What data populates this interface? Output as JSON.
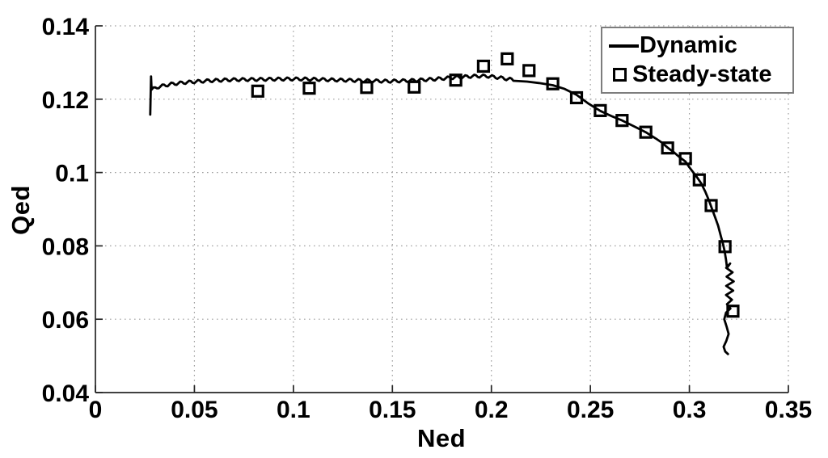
{
  "chart_data": {
    "type": "line",
    "title": "",
    "xlabel": "Ned",
    "ylabel": "Qed",
    "xlim": [
      0,
      0.35
    ],
    "ylim": [
      0.04,
      0.14
    ],
    "grid": "dotted",
    "legend_position": "top-right",
    "x_ticks": {
      "values": [
        0,
        0.05,
        0.1,
        0.15,
        0.2,
        0.25,
        0.3,
        0.35
      ],
      "labels": [
        "0",
        "0.05",
        "0.1",
        "0.15",
        "0.2",
        "0.25",
        "0.3",
        "0.35"
      ]
    },
    "y_ticks": {
      "values": [
        0.04,
        0.06,
        0.08,
        0.1,
        0.12,
        0.14
      ],
      "labels": [
        "0.04",
        "0.06",
        "0.08",
        "0.1",
        "0.12",
        "0.14"
      ]
    },
    "colors": {
      "line": "#000000",
      "marker": "#000000",
      "axis": "#262626",
      "grid": "#a0a0a0",
      "text": "#000000"
    },
    "series": [
      {
        "name": "Dynamic",
        "type": "line",
        "line_width": 2.8,
        "transient": [
          [
            0.0277,
            0.1158
          ],
          [
            0.0281,
            0.1262
          ],
          [
            0.0284,
            0.1226
          ]
        ],
        "ripple": {
          "amplitude": 0.00042,
          "wavelength": 0.0045,
          "step": 0.0009
        },
        "base": [
          [
            0.0284,
            0.1226
          ],
          [
            0.032,
            0.1234
          ],
          [
            0.038,
            0.1241
          ],
          [
            0.046,
            0.1246
          ],
          [
            0.056,
            0.125
          ],
          [
            0.068,
            0.1253
          ],
          [
            0.082,
            0.1254
          ],
          [
            0.096,
            0.1255
          ],
          [
            0.106,
            0.1255
          ],
          [
            0.118,
            0.1253
          ],
          [
            0.132,
            0.1251
          ],
          [
            0.148,
            0.1249
          ],
          [
            0.16,
            0.1251
          ],
          [
            0.172,
            0.1255
          ],
          [
            0.183,
            0.126
          ],
          [
            0.192,
            0.1263
          ],
          [
            0.198,
            0.1263
          ],
          [
            0.205,
            0.1258
          ],
          [
            0.212,
            0.1252
          ]
        ],
        "tail": [
          [
            0.218,
            0.1248
          ],
          [
            0.224,
            0.1244
          ],
          [
            0.231,
            0.1238
          ],
          [
            0.237,
            0.1228
          ],
          [
            0.243,
            0.1212
          ],
          [
            0.249,
            0.1188
          ],
          [
            0.255,
            0.1168
          ],
          [
            0.261,
            0.1153
          ],
          [
            0.266,
            0.1142
          ],
          [
            0.272,
            0.1126
          ],
          [
            0.278,
            0.111
          ],
          [
            0.283,
            0.1093
          ],
          [
            0.286,
            0.1082
          ],
          [
            0.289,
            0.1068
          ],
          [
            0.292,
            0.1056
          ],
          [
            0.295,
            0.1042
          ],
          [
            0.298,
            0.103
          ],
          [
            0.3,
            0.1014
          ],
          [
            0.302,
            0.1
          ],
          [
            0.304,
            0.0986
          ],
          [
            0.306,
            0.097
          ],
          [
            0.308,
            0.0948
          ],
          [
            0.31,
            0.0922
          ],
          [
            0.3115,
            0.09
          ],
          [
            0.313,
            0.0878
          ],
          [
            0.3145,
            0.0855
          ],
          [
            0.316,
            0.0825
          ],
          [
            0.317,
            0.0805
          ],
          [
            0.3178,
            0.0785
          ],
          [
            0.3185,
            0.0762
          ],
          [
            0.319,
            0.074
          ],
          [
            0.3206,
            0.0752
          ],
          [
            0.3186,
            0.074
          ],
          [
            0.3218,
            0.0728
          ],
          [
            0.3188,
            0.0716
          ],
          [
            0.3224,
            0.0703
          ],
          [
            0.3186,
            0.0691
          ],
          [
            0.3221,
            0.0678
          ],
          [
            0.3185,
            0.0666
          ],
          [
            0.3215,
            0.0653
          ],
          [
            0.319,
            0.0641
          ],
          [
            0.3207,
            0.0629
          ],
          [
            0.3185,
            0.0618
          ],
          [
            0.3176,
            0.06
          ],
          [
            0.3188,
            0.058
          ],
          [
            0.3198,
            0.056
          ],
          [
            0.3186,
            0.054
          ],
          [
            0.3173,
            0.0525
          ],
          [
            0.3181,
            0.0512
          ],
          [
            0.3195,
            0.0505
          ]
        ]
      },
      {
        "name": "Steady-state",
        "type": "scatter",
        "marker": "open-square",
        "marker_size": 13,
        "marker_stroke": 3.2,
        "points": [
          [
            0.082,
            0.1222
          ],
          [
            0.108,
            0.123
          ],
          [
            0.137,
            0.1232
          ],
          [
            0.161,
            0.1233
          ],
          [
            0.182,
            0.1252
          ],
          [
            0.196,
            0.129
          ],
          [
            0.208,
            0.131
          ],
          [
            0.219,
            0.1278
          ],
          [
            0.231,
            0.1242
          ],
          [
            0.243,
            0.1204
          ],
          [
            0.255,
            0.1169
          ],
          [
            0.266,
            0.1142
          ],
          [
            0.278,
            0.111
          ],
          [
            0.289,
            0.1067
          ],
          [
            0.298,
            0.1038
          ],
          [
            0.305,
            0.098
          ],
          [
            0.311,
            0.091
          ],
          [
            0.318,
            0.0798
          ],
          [
            0.322,
            0.0622
          ]
        ]
      }
    ]
  }
}
